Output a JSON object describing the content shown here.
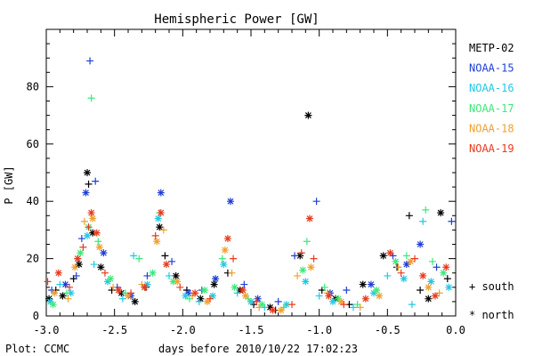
{
  "chart_data": {
    "type": "scatter",
    "title": "Hemispheric Power [GW]",
    "xlabel": "days before 2010/10/22 17:02:23",
    "ylabel": "P [GW]",
    "xlim": [
      -3.0,
      0.0
    ],
    "ylim": [
      0,
      100
    ],
    "x_ticks": [
      "-3.0",
      "-2.5",
      "-2.0",
      "-1.5",
      "-1.0",
      "-0.5",
      "0.0"
    ],
    "y_ticks": [
      "0",
      "20",
      "40",
      "60",
      "80"
    ],
    "credit": "Plot: CCMC",
    "legend_position": "right",
    "marker_legend": {
      "plus": "+ south",
      "star": "* north"
    },
    "series": [
      {
        "name": "METP-02",
        "color": "#000000",
        "points": [
          {
            "x": -2.98,
            "y": 6,
            "m": "star"
          },
          {
            "x": -2.93,
            "y": 9,
            "m": "plus"
          },
          {
            "x": -2.88,
            "y": 7,
            "m": "star"
          },
          {
            "x": -2.8,
            "y": 13,
            "m": "plus"
          },
          {
            "x": -2.76,
            "y": 18,
            "m": "star"
          },
          {
            "x": -2.7,
            "y": 50,
            "m": "star"
          },
          {
            "x": -2.69,
            "y": 46,
            "m": "plus"
          },
          {
            "x": -2.66,
            "y": 29,
            "m": "star"
          },
          {
            "x": -2.6,
            "y": 17,
            "m": "star"
          },
          {
            "x": -2.52,
            "y": 9,
            "m": "plus"
          },
          {
            "x": -2.45,
            "y": 8,
            "m": "star"
          },
          {
            "x": -2.35,
            "y": 5,
            "m": "star"
          },
          {
            "x": -2.27,
            "y": 10,
            "m": "plus"
          },
          {
            "x": -2.17,
            "y": 31,
            "m": "star"
          },
          {
            "x": -2.13,
            "y": 21,
            "m": "plus"
          },
          {
            "x": -2.05,
            "y": 14,
            "m": "star"
          },
          {
            "x": -1.97,
            "y": 9,
            "m": "plus"
          },
          {
            "x": -1.87,
            "y": 6,
            "m": "star"
          },
          {
            "x": -1.77,
            "y": 11,
            "m": "star"
          },
          {
            "x": -1.67,
            "y": 15,
            "m": "plus"
          },
          {
            "x": -1.58,
            "y": 9,
            "m": "star"
          },
          {
            "x": -1.48,
            "y": 4,
            "m": "plus"
          },
          {
            "x": -1.36,
            "y": 3,
            "m": "star"
          },
          {
            "x": -1.32,
            "y": 2,
            "m": "plus"
          },
          {
            "x": -1.14,
            "y": 21,
            "m": "star"
          },
          {
            "x": -1.08,
            "y": 70,
            "m": "star"
          },
          {
            "x": -0.98,
            "y": 9,
            "m": "plus"
          },
          {
            "x": -0.88,
            "y": 6,
            "m": "star"
          },
          {
            "x": -0.78,
            "y": 4,
            "m": "plus"
          },
          {
            "x": -0.68,
            "y": 11,
            "m": "star"
          },
          {
            "x": -0.53,
            "y": 21,
            "m": "star"
          },
          {
            "x": -0.43,
            "y": 17,
            "m": "plus"
          },
          {
            "x": -0.34,
            "y": 35,
            "m": "plus"
          },
          {
            "x": -0.26,
            "y": 9,
            "m": "plus"
          },
          {
            "x": -0.2,
            "y": 6,
            "m": "star"
          },
          {
            "x": -0.11,
            "y": 36,
            "m": "star"
          },
          {
            "x": -0.06,
            "y": 13,
            "m": "plus"
          }
        ]
      },
      {
        "name": "NOAA-15",
        "color": "#1f3fd6",
        "points": [
          {
            "x": -2.96,
            "y": 9,
            "m": "plus"
          },
          {
            "x": -2.86,
            "y": 11,
            "m": "star"
          },
          {
            "x": -2.78,
            "y": 14,
            "m": "plus"
          },
          {
            "x": -2.74,
            "y": 27,
            "m": "plus"
          },
          {
            "x": -2.71,
            "y": 43,
            "m": "star"
          },
          {
            "x": -2.68,
            "y": 89,
            "m": "plus"
          },
          {
            "x": -2.64,
            "y": 47,
            "m": "plus"
          },
          {
            "x": -2.58,
            "y": 22,
            "m": "star"
          },
          {
            "x": -2.48,
            "y": 10,
            "m": "plus"
          },
          {
            "x": -2.38,
            "y": 7,
            "m": "star"
          },
          {
            "x": -2.26,
            "y": 14,
            "m": "plus"
          },
          {
            "x": -2.16,
            "y": 43,
            "m": "star"
          },
          {
            "x": -2.08,
            "y": 19,
            "m": "plus"
          },
          {
            "x": -1.96,
            "y": 8,
            "m": "star"
          },
          {
            "x": -1.86,
            "y": 9,
            "m": "plus"
          },
          {
            "x": -1.76,
            "y": 13,
            "m": "star"
          },
          {
            "x": -1.65,
            "y": 40,
            "m": "star"
          },
          {
            "x": -1.55,
            "y": 11,
            "m": "plus"
          },
          {
            "x": -1.45,
            "y": 6,
            "m": "star"
          },
          {
            "x": -1.3,
            "y": 5,
            "m": "plus"
          },
          {
            "x": -1.18,
            "y": 21,
            "m": "plus"
          },
          {
            "x": -1.02,
            "y": 40,
            "m": "plus"
          },
          {
            "x": -0.92,
            "y": 8,
            "m": "star"
          },
          {
            "x": -0.8,
            "y": 9,
            "m": "plus"
          },
          {
            "x": -0.62,
            "y": 11,
            "m": "star"
          },
          {
            "x": -0.46,
            "y": 21,
            "m": "plus"
          },
          {
            "x": -0.36,
            "y": 18,
            "m": "star"
          },
          {
            "x": -0.26,
            "y": 25,
            "m": "star"
          },
          {
            "x": -0.14,
            "y": 17,
            "m": "plus"
          },
          {
            "x": -0.03,
            "y": 33,
            "m": "plus"
          }
        ]
      },
      {
        "name": "NOAA-16",
        "color": "#22c8e6",
        "points": [
          {
            "x": -2.97,
            "y": 5,
            "m": "star"
          },
          {
            "x": -2.9,
            "y": 11,
            "m": "plus"
          },
          {
            "x": -2.82,
            "y": 8,
            "m": "star"
          },
          {
            "x": -2.77,
            "y": 20,
            "m": "plus"
          },
          {
            "x": -2.7,
            "y": 28,
            "m": "star"
          },
          {
            "x": -2.65,
            "y": 18,
            "m": "plus"
          },
          {
            "x": -2.55,
            "y": 12,
            "m": "star"
          },
          {
            "x": -2.44,
            "y": 6,
            "m": "plus"
          },
          {
            "x": -2.36,
            "y": 21,
            "m": "plus"
          },
          {
            "x": -2.26,
            "y": 11,
            "m": "star"
          },
          {
            "x": -2.18,
            "y": 34,
            "m": "star"
          },
          {
            "x": -2.1,
            "y": 14,
            "m": "plus"
          },
          {
            "x": -1.98,
            "y": 7,
            "m": "star"
          },
          {
            "x": -1.88,
            "y": 5,
            "m": "plus"
          },
          {
            "x": -1.78,
            "y": 7,
            "m": "star"
          },
          {
            "x": -1.7,
            "y": 18,
            "m": "star"
          },
          {
            "x": -1.6,
            "y": 8,
            "m": "plus"
          },
          {
            "x": -1.5,
            "y": 5,
            "m": "star"
          },
          {
            "x": -1.4,
            "y": 3,
            "m": "plus"
          },
          {
            "x": -1.24,
            "y": 4,
            "m": "star"
          },
          {
            "x": -1.1,
            "y": 12,
            "m": "star"
          },
          {
            "x": -1.0,
            "y": 7,
            "m": "plus"
          },
          {
            "x": -0.9,
            "y": 5,
            "m": "star"
          },
          {
            "x": -0.75,
            "y": 3,
            "m": "plus"
          },
          {
            "x": -0.6,
            "y": 8,
            "m": "star"
          },
          {
            "x": -0.5,
            "y": 14,
            "m": "plus"
          },
          {
            "x": -0.38,
            "y": 13,
            "m": "star"
          },
          {
            "x": -0.32,
            "y": 4,
            "m": "plus"
          },
          {
            "x": -0.24,
            "y": 33,
            "m": "plus"
          },
          {
            "x": -0.18,
            "y": 12,
            "m": "star"
          },
          {
            "x": -0.05,
            "y": 10,
            "m": "star"
          }
        ]
      },
      {
        "name": "NOAA-17",
        "color": "#3ee87a",
        "points": [
          {
            "x": -2.95,
            "y": 4,
            "m": "star"
          },
          {
            "x": -2.85,
            "y": 8,
            "m": "plus"
          },
          {
            "x": -2.75,
            "y": 22,
            "m": "star"
          },
          {
            "x": -2.69,
            "y": 31,
            "m": "star"
          },
          {
            "x": -2.67,
            "y": 76,
            "m": "plus"
          },
          {
            "x": -2.62,
            "y": 26,
            "m": "plus"
          },
          {
            "x": -2.53,
            "y": 13,
            "m": "star"
          },
          {
            "x": -2.42,
            "y": 8,
            "m": "plus"
          },
          {
            "x": -2.32,
            "y": 20,
            "m": "plus"
          },
          {
            "x": -2.22,
            "y": 15,
            "m": "star"
          },
          {
            "x": -2.17,
            "y": 36,
            "m": "plus"
          },
          {
            "x": -2.07,
            "y": 12,
            "m": "star"
          },
          {
            "x": -1.95,
            "y": 6,
            "m": "plus"
          },
          {
            "x": -1.84,
            "y": 9,
            "m": "star"
          },
          {
            "x": -1.71,
            "y": 20,
            "m": "plus"
          },
          {
            "x": -1.62,
            "y": 10,
            "m": "star"
          },
          {
            "x": -1.52,
            "y": 6,
            "m": "plus"
          },
          {
            "x": -1.42,
            "y": 4,
            "m": "star"
          },
          {
            "x": -1.26,
            "y": 3,
            "m": "plus"
          },
          {
            "x": -1.12,
            "y": 16,
            "m": "star"
          },
          {
            "x": -1.09,
            "y": 26,
            "m": "plus"
          },
          {
            "x": -0.96,
            "y": 10,
            "m": "plus"
          },
          {
            "x": -0.86,
            "y": 6,
            "m": "star"
          },
          {
            "x": -0.72,
            "y": 4,
            "m": "plus"
          },
          {
            "x": -0.58,
            "y": 9,
            "m": "star"
          },
          {
            "x": -0.44,
            "y": 19,
            "m": "star"
          },
          {
            "x": -0.36,
            "y": 21,
            "m": "plus"
          },
          {
            "x": -0.22,
            "y": 37,
            "m": "plus"
          },
          {
            "x": -0.17,
            "y": 19,
            "m": "plus"
          },
          {
            "x": -0.09,
            "y": 15,
            "m": "star"
          }
        ]
      },
      {
        "name": "NOAA-18",
        "color": "#f0a030",
        "points": [
          {
            "x": -2.94,
            "y": 8,
            "m": "star"
          },
          {
            "x": -2.84,
            "y": 6,
            "m": "plus"
          },
          {
            "x": -2.79,
            "y": 17,
            "m": "star"
          },
          {
            "x": -2.72,
            "y": 33,
            "m": "plus"
          },
          {
            "x": -2.66,
            "y": 34,
            "m": "star"
          },
          {
            "x": -2.61,
            "y": 24,
            "m": "star"
          },
          {
            "x": -2.51,
            "y": 10,
            "m": "plus"
          },
          {
            "x": -2.4,
            "y": 7,
            "m": "star"
          },
          {
            "x": -2.3,
            "y": 11,
            "m": "plus"
          },
          {
            "x": -2.19,
            "y": 26,
            "m": "star"
          },
          {
            "x": -2.14,
            "y": 30,
            "m": "plus"
          },
          {
            "x": -2.04,
            "y": 12,
            "m": "star"
          },
          {
            "x": -1.93,
            "y": 7,
            "m": "plus"
          },
          {
            "x": -1.82,
            "y": 5,
            "m": "star"
          },
          {
            "x": -1.69,
            "y": 23,
            "m": "star"
          },
          {
            "x": -1.64,
            "y": 15,
            "m": "plus"
          },
          {
            "x": -1.54,
            "y": 7,
            "m": "star"
          },
          {
            "x": -1.44,
            "y": 3,
            "m": "plus"
          },
          {
            "x": -1.28,
            "y": 2,
            "m": "star"
          },
          {
            "x": -1.16,
            "y": 14,
            "m": "plus"
          },
          {
            "x": -1.06,
            "y": 17,
            "m": "star"
          },
          {
            "x": -0.94,
            "y": 8,
            "m": "plus"
          },
          {
            "x": -0.84,
            "y": 5,
            "m": "star"
          },
          {
            "x": -0.7,
            "y": 3,
            "m": "plus"
          },
          {
            "x": -0.56,
            "y": 7,
            "m": "star"
          },
          {
            "x": -0.42,
            "y": 17,
            "m": "plus"
          },
          {
            "x": -0.33,
            "y": 19,
            "m": "star"
          },
          {
            "x": -0.2,
            "y": 10,
            "m": "star"
          },
          {
            "x": -0.12,
            "y": 8,
            "m": "plus"
          }
        ]
      },
      {
        "name": "NOAA-19",
        "color": "#e83a1c",
        "points": [
          {
            "x": -2.99,
            "y": 12,
            "m": "plus"
          },
          {
            "x": -2.91,
            "y": 15,
            "m": "star"
          },
          {
            "x": -2.83,
            "y": 10,
            "m": "plus"
          },
          {
            "x": -2.77,
            "y": 20,
            "m": "star"
          },
          {
            "x": -2.73,
            "y": 24,
            "m": "plus"
          },
          {
            "x": -2.69,
            "y": 31,
            "m": "plus"
          },
          {
            "x": -2.67,
            "y": 36,
            "m": "star"
          },
          {
            "x": -2.63,
            "y": 29,
            "m": "star"
          },
          {
            "x": -2.57,
            "y": 15,
            "m": "plus"
          },
          {
            "x": -2.47,
            "y": 9,
            "m": "star"
          },
          {
            "x": -2.38,
            "y": 8,
            "m": "plus"
          },
          {
            "x": -2.28,
            "y": 10,
            "m": "star"
          },
          {
            "x": -2.2,
            "y": 28,
            "m": "plus"
          },
          {
            "x": -2.16,
            "y": 36,
            "m": "star"
          },
          {
            "x": -2.12,
            "y": 18,
            "m": "star"
          },
          {
            "x": -2.02,
            "y": 10,
            "m": "plus"
          },
          {
            "x": -1.91,
            "y": 8,
            "m": "star"
          },
          {
            "x": -1.8,
            "y": 6,
            "m": "plus"
          },
          {
            "x": -1.67,
            "y": 27,
            "m": "star"
          },
          {
            "x": -1.63,
            "y": 20,
            "m": "plus"
          },
          {
            "x": -1.56,
            "y": 9,
            "m": "star"
          },
          {
            "x": -1.46,
            "y": 5,
            "m": "plus"
          },
          {
            "x": -1.34,
            "y": 2,
            "m": "star"
          },
          {
            "x": -1.2,
            "y": 4,
            "m": "plus"
          },
          {
            "x": -1.13,
            "y": 22,
            "m": "plus"
          },
          {
            "x": -1.07,
            "y": 34,
            "m": "star"
          },
          {
            "x": -1.04,
            "y": 20,
            "m": "plus"
          },
          {
            "x": -0.93,
            "y": 7,
            "m": "star"
          },
          {
            "x": -0.82,
            "y": 4,
            "m": "plus"
          },
          {
            "x": -0.66,
            "y": 6,
            "m": "star"
          },
          {
            "x": -0.48,
            "y": 22,
            "m": "star"
          },
          {
            "x": -0.4,
            "y": 15,
            "m": "plus"
          },
          {
            "x": -0.3,
            "y": 20,
            "m": "plus"
          },
          {
            "x": -0.24,
            "y": 14,
            "m": "star"
          },
          {
            "x": -0.15,
            "y": 7,
            "m": "star"
          },
          {
            "x": -0.07,
            "y": 17,
            "m": "star"
          }
        ]
      }
    ]
  }
}
